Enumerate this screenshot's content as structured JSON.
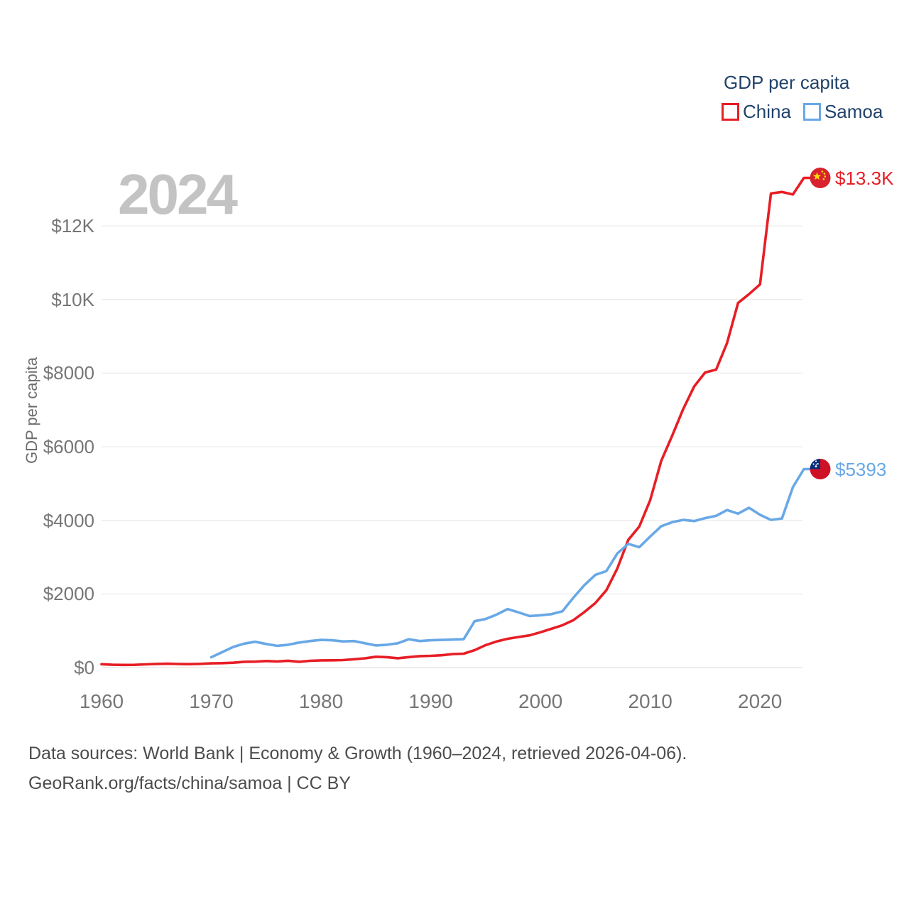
{
  "watermark": "2024",
  "legend": {
    "title": "GDP per capita",
    "items": [
      {
        "label": "China",
        "color": "#e71e25"
      },
      {
        "label": "Samoa",
        "color": "#69a8e6"
      }
    ]
  },
  "y_axis": {
    "title": "GDP per capita",
    "ticks": [
      "$0",
      "$2000",
      "$4000",
      "$6000",
      "$8000",
      "$10K",
      "$12K"
    ]
  },
  "x_axis": {
    "ticks": [
      "1960",
      "1970",
      "1980",
      "1990",
      "2000",
      "2010",
      "2020"
    ]
  },
  "footer": {
    "line1": "Data sources: World Bank | Economy & Growth (1960–2024, retrieved 2026-04-06).",
    "line2": "GeoRank.org/facts/china/samoa | CC BY"
  },
  "chart_data": {
    "type": "line",
    "title": "GDP per capita",
    "ylabel": "GDP per capita",
    "xlim": [
      1960,
      2024
    ],
    "ylim": [
      0,
      13600
    ],
    "grid": true,
    "legend_position": "top-right",
    "x_ticks": [
      1960,
      1970,
      1980,
      1990,
      2000,
      2010,
      2020
    ],
    "y_tick_values": [
      0,
      2000,
      4000,
      6000,
      8000,
      10000,
      12000
    ],
    "y_tick_labels": [
      "$0",
      "$2000",
      "$4000",
      "$6000",
      "$8000",
      "$10K",
      "$12K"
    ],
    "series": [
      {
        "name": "China",
        "color": "#e71e25",
        "end_label": "$13.3K",
        "flag": "china",
        "start_year": 1960,
        "values": [
          90,
          76,
          71,
          74,
          86,
          98,
          104,
          97,
          92,
          100,
          113,
          119,
          132,
          157,
          160,
          178,
          165,
          185,
          156,
          184,
          195,
          197,
          203,
          226,
          251,
          294,
          282,
          252,
          284,
          311,
          318,
          333,
          366,
          377,
          473,
          610,
          709,
          782,
          829,
          873,
          959,
          1053,
          1149,
          1289,
          1509,
          1753,
          2099,
          2694,
          3468,
          3832,
          4550,
          5614,
          6301,
          7020,
          7636,
          8016,
          8094,
          8817,
          9905,
          10144,
          10409,
          12880,
          12920,
          12850,
          13303
        ]
      },
      {
        "name": "Samoa",
        "color": "#69a8e6",
        "end_label": "$5393",
        "flag": "samoa",
        "start_year": 1970,
        "values": [
          280,
          420,
          560,
          650,
          700,
          640,
          590,
          620,
          680,
          720,
          750,
          740,
          710,
          720,
          660,
          600,
          620,
          660,
          770,
          720,
          740,
          750,
          760,
          770,
          1260,
          1320,
          1440,
          1590,
          1500,
          1400,
          1420,
          1450,
          1530,
          1900,
          2240,
          2520,
          2620,
          3100,
          3360,
          3270,
          3560,
          3840,
          3950,
          4010,
          3980,
          4060,
          4120,
          4280,
          4180,
          4340,
          4150,
          4010,
          4050,
          4900,
          5393
        ]
      }
    ]
  }
}
